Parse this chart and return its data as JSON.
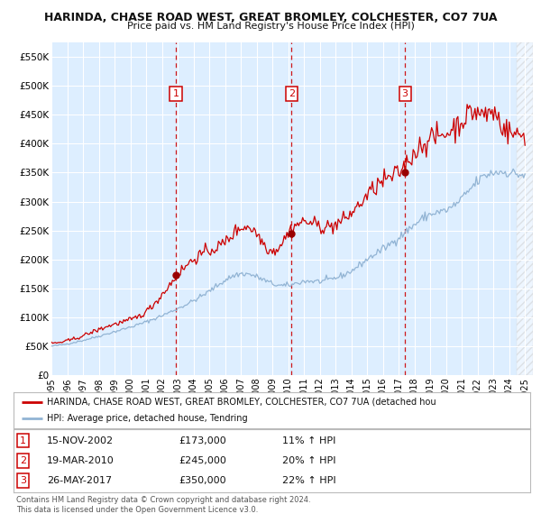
{
  "title": "HARINDA, CHASE ROAD WEST, GREAT BROMLEY, COLCHESTER, CO7 7UA",
  "subtitle": "Price paid vs. HM Land Registry's House Price Index (HPI)",
  "background_color": "#ffffff",
  "plot_bg_color": "#ddeeff",
  "grid_color": "#ffffff",
  "legend_label_red": "HARINDA, CHASE ROAD WEST, GREAT BROMLEY, COLCHESTER, CO7 7UA (detached hou",
  "legend_label_blue": "HPI: Average price, detached house, Tendring",
  "footer1": "Contains HM Land Registry data © Crown copyright and database right 2024.",
  "footer2": "This data is licensed under the Open Government Licence v3.0.",
  "sales": [
    {
      "num": 1,
      "date_label": "15-NOV-2002",
      "price_label": "£173,000",
      "pct_label": "11% ↑ HPI",
      "year": 2002.88,
      "price": 173000
    },
    {
      "num": 2,
      "date_label": "19-MAR-2010",
      "price_label": "£245,000",
      "pct_label": "20% ↑ HPI",
      "year": 2010.21,
      "price": 245000
    },
    {
      "num": 3,
      "date_label": "26-MAY-2017",
      "price_label": "£350,000",
      "pct_label": "22% ↑ HPI",
      "year": 2017.4,
      "price": 350000
    }
  ],
  "ylim": [
    0,
    575000
  ],
  "xlim_start": 1995.0,
  "xlim_end": 2025.5,
  "hatch_start": 2024.5,
  "yticks": [
    0,
    50000,
    100000,
    150000,
    200000,
    250000,
    300000,
    350000,
    400000,
    450000,
    500000,
    550000
  ],
  "ytick_labels": [
    "£0",
    "£50K",
    "£100K",
    "£150K",
    "£200K",
    "£250K",
    "£300K",
    "£350K",
    "£400K",
    "£450K",
    "£500K",
    "£550K"
  ],
  "xticks": [
    1995,
    1996,
    1997,
    1998,
    1999,
    2000,
    2001,
    2002,
    2003,
    2004,
    2005,
    2006,
    2007,
    2008,
    2009,
    2010,
    2011,
    2012,
    2013,
    2014,
    2015,
    2016,
    2017,
    2018,
    2019,
    2020,
    2021,
    2022,
    2023,
    2024,
    2025
  ],
  "hpi_line_color": "#92b4d4",
  "red_line_color": "#cc0000",
  "vline_color": "#cc0000",
  "box_color": "#cc0000",
  "sale_dot_color": "#990000"
}
